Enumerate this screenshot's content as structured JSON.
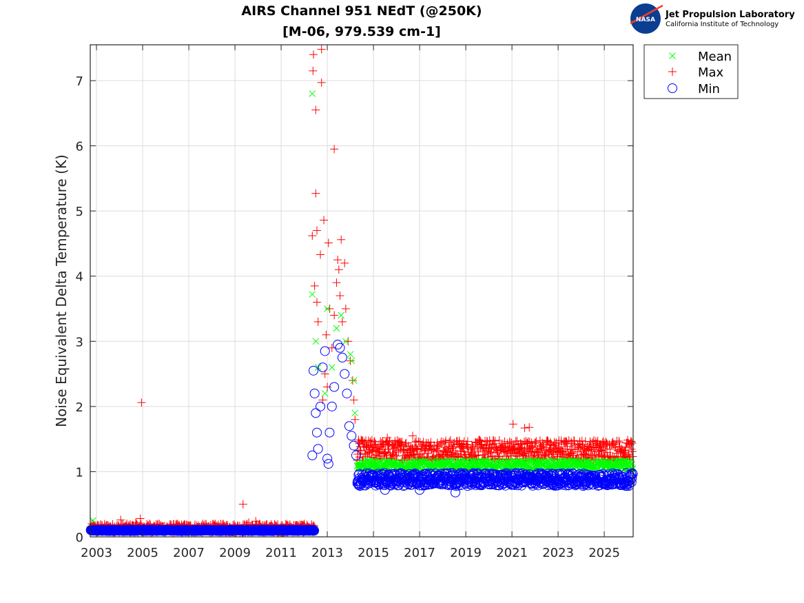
{
  "logo": {
    "badge_text": "NASA",
    "org_name": "Jet Propulsion Laboratory",
    "org_sub": "California Institute of Technology"
  },
  "chart_data": {
    "type": "scatter",
    "title": "AIRS Channel 951 NEdT (@250K)",
    "subtitle": "[M-06, 979.539 cm-1]",
    "xlabel": "",
    "ylabel": "Noise Equivalent Delta Temperature (K)",
    "xlim": [
      2002.73,
      2026.25
    ],
    "ylim": [
      0,
      7.55
    ],
    "grid": true,
    "legend_position": "outside-top-right",
    "x_ticks": [
      2003,
      2005,
      2007,
      2009,
      2011,
      2013,
      2015,
      2017,
      2019,
      2021,
      2023,
      2025
    ],
    "x_tick_labels": [
      "2003",
      "2005",
      "2007",
      "2009",
      "2011",
      "2013",
      "2015",
      "2017",
      "2019",
      "2021",
      "2023",
      "2025"
    ],
    "y_ticks": [
      0,
      1,
      2,
      3,
      4,
      5,
      6,
      7
    ],
    "y_tick_labels": [
      "0",
      "1",
      "2",
      "3",
      "4",
      "5",
      "6",
      "7"
    ],
    "legend": [
      {
        "name": "Mean",
        "marker": "x",
        "color": "#00ff00"
      },
      {
        "name": "Max",
        "marker": "+",
        "color": "#ff0000"
      },
      {
        "name": "Min",
        "marker": "o",
        "color": "#0000ff"
      }
    ],
    "series": [
      {
        "name": "Max",
        "marker": "+",
        "color": "#ff0000",
        "segments": [
          {
            "x_start": 2002.75,
            "x_end": 2012.45,
            "y_base": 0.13,
            "y_spread": 0.07
          },
          {
            "x_start": 2014.3,
            "x_end": 2026.25,
            "y_base": 1.33,
            "y_spread": 0.16
          }
        ],
        "spike_points": [
          [
            2002.9,
            0.17
          ],
          [
            2004.05,
            0.26
          ],
          [
            2004.7,
            0.22
          ],
          [
            2004.95,
            2.06
          ],
          [
            2004.9,
            0.28
          ],
          [
            2005.3,
            0.2
          ],
          [
            2006.8,
            0.18
          ],
          [
            2009.35,
            0.5
          ],
          [
            2009.6,
            0.22
          ],
          [
            2009.9,
            0.24
          ],
          [
            2012.35,
            4.62
          ],
          [
            2012.4,
            7.4
          ],
          [
            2012.38,
            7.15
          ],
          [
            2012.5,
            6.55
          ],
          [
            2012.5,
            5.27
          ],
          [
            2012.55,
            4.7
          ],
          [
            2012.75,
            7.48
          ],
          [
            2012.75,
            6.97
          ],
          [
            2012.7,
            4.33
          ],
          [
            2012.85,
            4.86
          ],
          [
            2013.05,
            4.51
          ],
          [
            2013.3,
            5.95
          ],
          [
            2013.45,
            4.25
          ],
          [
            2013.6,
            4.56
          ],
          [
            2012.45,
            3.85
          ],
          [
            2012.55,
            3.6
          ],
          [
            2012.6,
            3.3
          ],
          [
            2012.9,
            2.5
          ],
          [
            2013.1,
            3.5
          ],
          [
            2013.2,
            2.9
          ],
          [
            2013.3,
            3.4
          ],
          [
            2013.4,
            3.9
          ],
          [
            2013.5,
            4.1
          ],
          [
            2013.55,
            3.7
          ],
          [
            2013.65,
            3.3
          ],
          [
            2013.75,
            4.2
          ],
          [
            2013.8,
            3.5
          ],
          [
            2013.9,
            3.0
          ],
          [
            2014.0,
            2.7
          ],
          [
            2014.1,
            2.4
          ],
          [
            2014.15,
            2.1
          ],
          [
            2014.2,
            1.8
          ],
          [
            2012.8,
            2.1
          ],
          [
            2013.0,
            2.3
          ],
          [
            2012.95,
            3.1
          ],
          [
            2021.05,
            1.73
          ],
          [
            2021.55,
            1.67
          ],
          [
            2021.75,
            1.68
          ],
          [
            2016.7,
            1.55
          ],
          [
            2015.6,
            1.52
          ]
        ]
      },
      {
        "name": "Mean",
        "marker": "x",
        "color": "#00ff00",
        "segments": [
          {
            "x_start": 2002.75,
            "x_end": 2012.45,
            "y_base": 0.11,
            "y_spread": 0.02
          },
          {
            "x_start": 2014.3,
            "x_end": 2026.25,
            "y_base": 1.1,
            "y_spread": 0.07
          }
        ],
        "spike_points": [
          [
            2002.85,
            0.25
          ],
          [
            2012.35,
            6.8
          ],
          [
            2012.35,
            3.72
          ],
          [
            2012.5,
            3.0
          ],
          [
            2012.6,
            2.6
          ],
          [
            2013.0,
            3.5
          ],
          [
            2013.4,
            3.2
          ],
          [
            2013.6,
            3.4
          ],
          [
            2013.8,
            3.0
          ],
          [
            2014.0,
            2.8
          ],
          [
            2014.05,
            2.7
          ],
          [
            2014.15,
            2.4
          ],
          [
            2014.2,
            1.9
          ],
          [
            2012.9,
            2.2
          ],
          [
            2013.2,
            2.6
          ]
        ]
      },
      {
        "name": "Min",
        "marker": "o",
        "color": "#0000ff",
        "segments": [
          {
            "x_start": 2002.75,
            "x_end": 2012.45,
            "y_base": 0.1,
            "y_spread": 0.01
          },
          {
            "x_start": 2014.3,
            "x_end": 2026.25,
            "y_base": 0.88,
            "y_spread": 0.1
          }
        ],
        "spike_points": [
          [
            2012.35,
            1.25
          ],
          [
            2012.4,
            2.55
          ],
          [
            2012.45,
            2.2
          ],
          [
            2012.5,
            1.9
          ],
          [
            2012.55,
            1.6
          ],
          [
            2012.6,
            1.35
          ],
          [
            2012.7,
            2.0
          ],
          [
            2012.8,
            2.6
          ],
          [
            2012.9,
            2.85
          ],
          [
            2013.0,
            1.2
          ],
          [
            2013.05,
            1.12
          ],
          [
            2013.1,
            1.6
          ],
          [
            2013.2,
            2.0
          ],
          [
            2013.3,
            2.3
          ],
          [
            2013.45,
            2.95
          ],
          [
            2013.55,
            2.9
          ],
          [
            2013.65,
            2.75
          ],
          [
            2013.75,
            2.5
          ],
          [
            2013.85,
            2.2
          ],
          [
            2013.95,
            1.7
          ],
          [
            2014.05,
            1.55
          ],
          [
            2014.15,
            1.4
          ],
          [
            2014.25,
            1.25
          ],
          [
            2014.35,
            0.95
          ],
          [
            2014.4,
            0.8
          ],
          [
            2018.55,
            0.68
          ],
          [
            2017.0,
            0.72
          ],
          [
            2015.5,
            0.72
          ]
        ]
      }
    ]
  }
}
